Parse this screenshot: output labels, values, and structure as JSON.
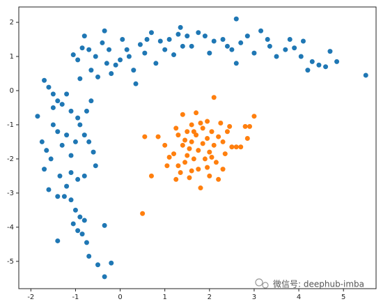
{
  "chart_data": {
    "type": "scatter",
    "xlim": [
      -2.27,
      5.73
    ],
    "ylim": [
      -5.8,
      2.45
    ],
    "xticks": [
      -2,
      -1,
      0,
      1,
      2,
      3,
      4,
      5
    ],
    "yticks": [
      -5,
      -4,
      -3,
      -2,
      -1,
      0,
      1,
      2
    ],
    "grid": false,
    "watermark": "微信号: deephub-imba",
    "series": [
      {
        "color": "#1f77b4",
        "x": [
          -1.05,
          -0.95,
          -0.8,
          -0.85,
          -0.7,
          -0.55,
          -0.4,
          -0.35,
          -0.3,
          -0.2,
          -0.1,
          0.0,
          0.05,
          0.15,
          0.2,
          0.3,
          0.35,
          0.45,
          0.55,
          0.7,
          0.8,
          0.9,
          1.0,
          1.2,
          1.35,
          1.4,
          1.5,
          1.6,
          1.75,
          1.9,
          2.0,
          2.1,
          2.3,
          2.5,
          2.6,
          2.6,
          2.7,
          2.85,
          3.0,
          3.15,
          3.3,
          3.35,
          3.5,
          3.7,
          3.8,
          3.9,
          4.05,
          4.1,
          4.3,
          4.45,
          4.6,
          4.7,
          4.85,
          5.5,
          -0.65,
          -0.9,
          -0.5,
          -0.25,
          0.6,
          1.1,
          1.3,
          2.4,
          4.2,
          -1.7,
          -1.6,
          -1.5,
          -1.4,
          -1.3,
          -1.2,
          -1.1,
          -1.5,
          -1.85,
          -1.75,
          -1.65,
          -1.5,
          -1.4,
          -1.3,
          -1.2,
          -1.1,
          -1.0,
          -0.9,
          -0.8,
          -0.75,
          -0.7,
          -0.6,
          -0.55,
          -1.7,
          -1.55,
          -1.35,
          -1.2,
          -1.1,
          -0.95,
          -0.8,
          -1.6,
          -1.4,
          -1.25,
          -1.1,
          -1.0,
          -0.9,
          -0.8,
          -1.05,
          -0.95,
          -0.85,
          -0.75,
          -0.35,
          -1.4,
          -0.7,
          -0.5,
          -0.35,
          -0.2,
          -0.65,
          -0.95
        ],
        "values": [
          1.05,
          0.9,
          1.6,
          1.25,
          1.2,
          1.0,
          1.4,
          1.75,
          0.8,
          0.5,
          0.75,
          0.9,
          1.5,
          1.2,
          1.0,
          0.6,
          0.2,
          1.35,
          1.1,
          1.7,
          0.8,
          1.45,
          1.2,
          1.05,
          1.85,
          1.3,
          1.6,
          1.3,
          1.7,
          1.6,
          1.1,
          1.45,
          1.5,
          1.2,
          2.1,
          0.8,
          1.4,
          1.6,
          1.1,
          1.75,
          1.5,
          1.3,
          1.0,
          1.2,
          1.5,
          1.25,
          1.0,
          1.45,
          0.85,
          0.75,
          0.7,
          1.15,
          0.85,
          0.45,
          0.6,
          0.35,
          0.4,
          1.2,
          1.5,
          1.5,
          1.65,
          1.3,
          0.6,
          0.3,
          0.1,
          -0.1,
          -0.3,
          -0.4,
          -0.1,
          -0.6,
          -0.5,
          -0.75,
          -1.5,
          -1.75,
          -1.0,
          -1.2,
          -1.6,
          -1.3,
          -1.9,
          -1.5,
          -1.0,
          -1.3,
          -0.6,
          -1.5,
          -1.8,
          -2.2,
          -2.3,
          -2.0,
          -2.5,
          -2.8,
          -2.4,
          -2.6,
          -2.5,
          -2.9,
          -3.1,
          -3.1,
          -3.2,
          -3.5,
          -3.7,
          -3.8,
          -3.9,
          -4.1,
          -4.2,
          -4.45,
          -3.95,
          -4.4,
          -4.85,
          -5.1,
          -5.45,
          -5.05,
          -0.3,
          -0.8
        ]
      },
      {
        "color": "#ff7f0e",
        "x": [
          0.5,
          0.55,
          0.7,
          0.85,
          1.0,
          1.05,
          1.1,
          1.2,
          1.25,
          1.3,
          1.35,
          1.4,
          1.4,
          1.45,
          1.5,
          1.5,
          1.55,
          1.6,
          1.6,
          1.65,
          1.7,
          1.7,
          1.75,
          1.75,
          1.8,
          1.85,
          1.85,
          1.9,
          1.95,
          1.95,
          2.0,
          2.0,
          2.05,
          2.1,
          2.1,
          2.15,
          2.2,
          2.25,
          2.3,
          2.35,
          2.4,
          2.5,
          2.6,
          2.7,
          2.8,
          2.9,
          3.0,
          2.85,
          1.3,
          1.55,
          1.95,
          2.2,
          1.45,
          1.65,
          2.05,
          1.8,
          1.25,
          2.45,
          1.6,
          2.3
        ],
        "values": [
          -3.6,
          -1.35,
          -2.5,
          -1.35,
          -1.6,
          -2.2,
          -1.95,
          -1.85,
          -2.6,
          -1.3,
          -2.4,
          -0.7,
          -1.6,
          -2.1,
          -1.2,
          -1.9,
          -2.55,
          -1.0,
          -1.5,
          -2.0,
          -0.65,
          -1.3,
          -1.75,
          -2.3,
          -2.85,
          -1.1,
          -1.55,
          -2.0,
          -0.9,
          -1.4,
          -1.8,
          -2.5,
          -1.2,
          -1.6,
          -0.2,
          -2.1,
          -1.35,
          -0.95,
          -1.5,
          -1.85,
          -1.2,
          -1.65,
          -1.65,
          -1.65,
          -1.05,
          -1.05,
          -0.75,
          -1.4,
          -2.2,
          -1.7,
          -2.25,
          -2.6,
          -1.45,
          -1.2,
          -1.95,
          -0.95,
          -1.1,
          -1.05,
          -2.35,
          -2.3
        ]
      }
    ]
  }
}
